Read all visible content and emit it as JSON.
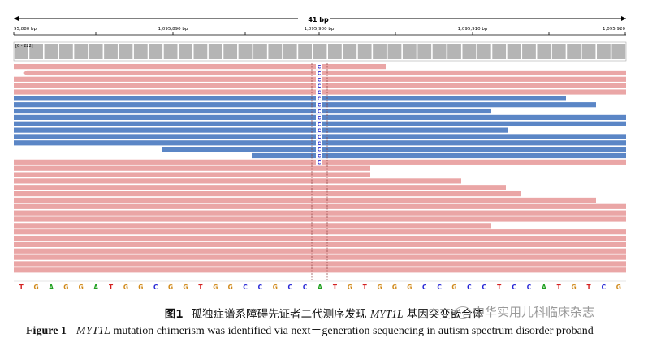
{
  "igv": {
    "span_label": "41 bp",
    "ruler_labels": [
      "95,880 bp",
      "1,095,890 bp",
      "1,095,900 bp",
      "1,095,910 bp",
      "1,095,920"
    ],
    "coverage_label": "[0 - 222]",
    "reference_sequence": [
      "T",
      "G",
      "A",
      "G",
      "G",
      "A",
      "T",
      "G",
      "G",
      "C",
      "G",
      "G",
      "T",
      "G",
      "G",
      "C",
      "C",
      "G",
      "C",
      "C",
      "A",
      "T",
      "G",
      "T",
      "G",
      "G",
      "G",
      "C",
      "C",
      "G",
      "C",
      "C",
      "T",
      "C",
      "C",
      "A",
      "T",
      "G",
      "T",
      "C",
      "G"
    ],
    "variant_base": "C",
    "colors": {
      "forward_read": "#eaa6a6",
      "reverse_read": "#5b86c6",
      "variant_text": "#2222cc",
      "coverage": "#b5b5b5",
      "base_A": "#21a121",
      "base_C": "#2626d6",
      "base_G": "#d18a1a",
      "base_T": "#d42121"
    }
  },
  "caption": {
    "cn_fig": "图1",
    "cn_text_before": "孤独症谱系障碍先证者二代测序发现",
    "cn_gene": "MYT1L",
    "cn_text_after": "基因突变嵌合体",
    "en_fig": "Figure 1",
    "en_gene": "MYT1L",
    "en_text": "mutation chimerism was identified via next－generation sequencing in autism spectrum disorder proband"
  },
  "watermark": {
    "text": "中华实用儿科临床杂志"
  }
}
